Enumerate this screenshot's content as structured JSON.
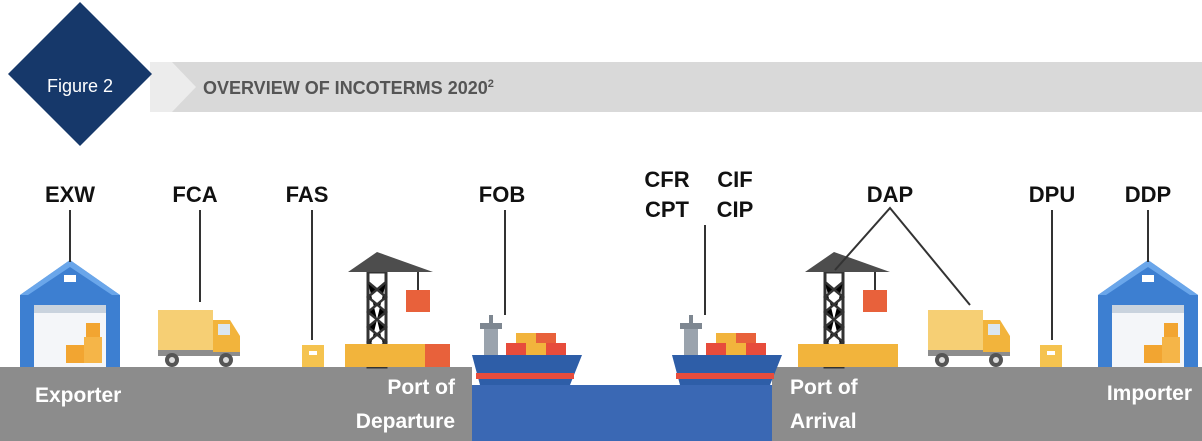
{
  "header": {
    "badge": "Figure 2",
    "title": "OVERVIEW OF INCOTERMS 2020",
    "title_sup": "2"
  },
  "terms": [
    "EXW",
    "FCA",
    "FAS",
    "FOB",
    "CFR",
    "CIF",
    "CPT",
    "CIP",
    "DAP",
    "DPU",
    "DDP"
  ],
  "locations": [
    {
      "lines": [
        "Exporter"
      ]
    },
    {
      "lines": [
        "Port of",
        "Departure"
      ]
    },
    {
      "lines": [
        "Port of",
        "Arrival"
      ]
    },
    {
      "lines": [
        "Importer"
      ]
    }
  ]
}
